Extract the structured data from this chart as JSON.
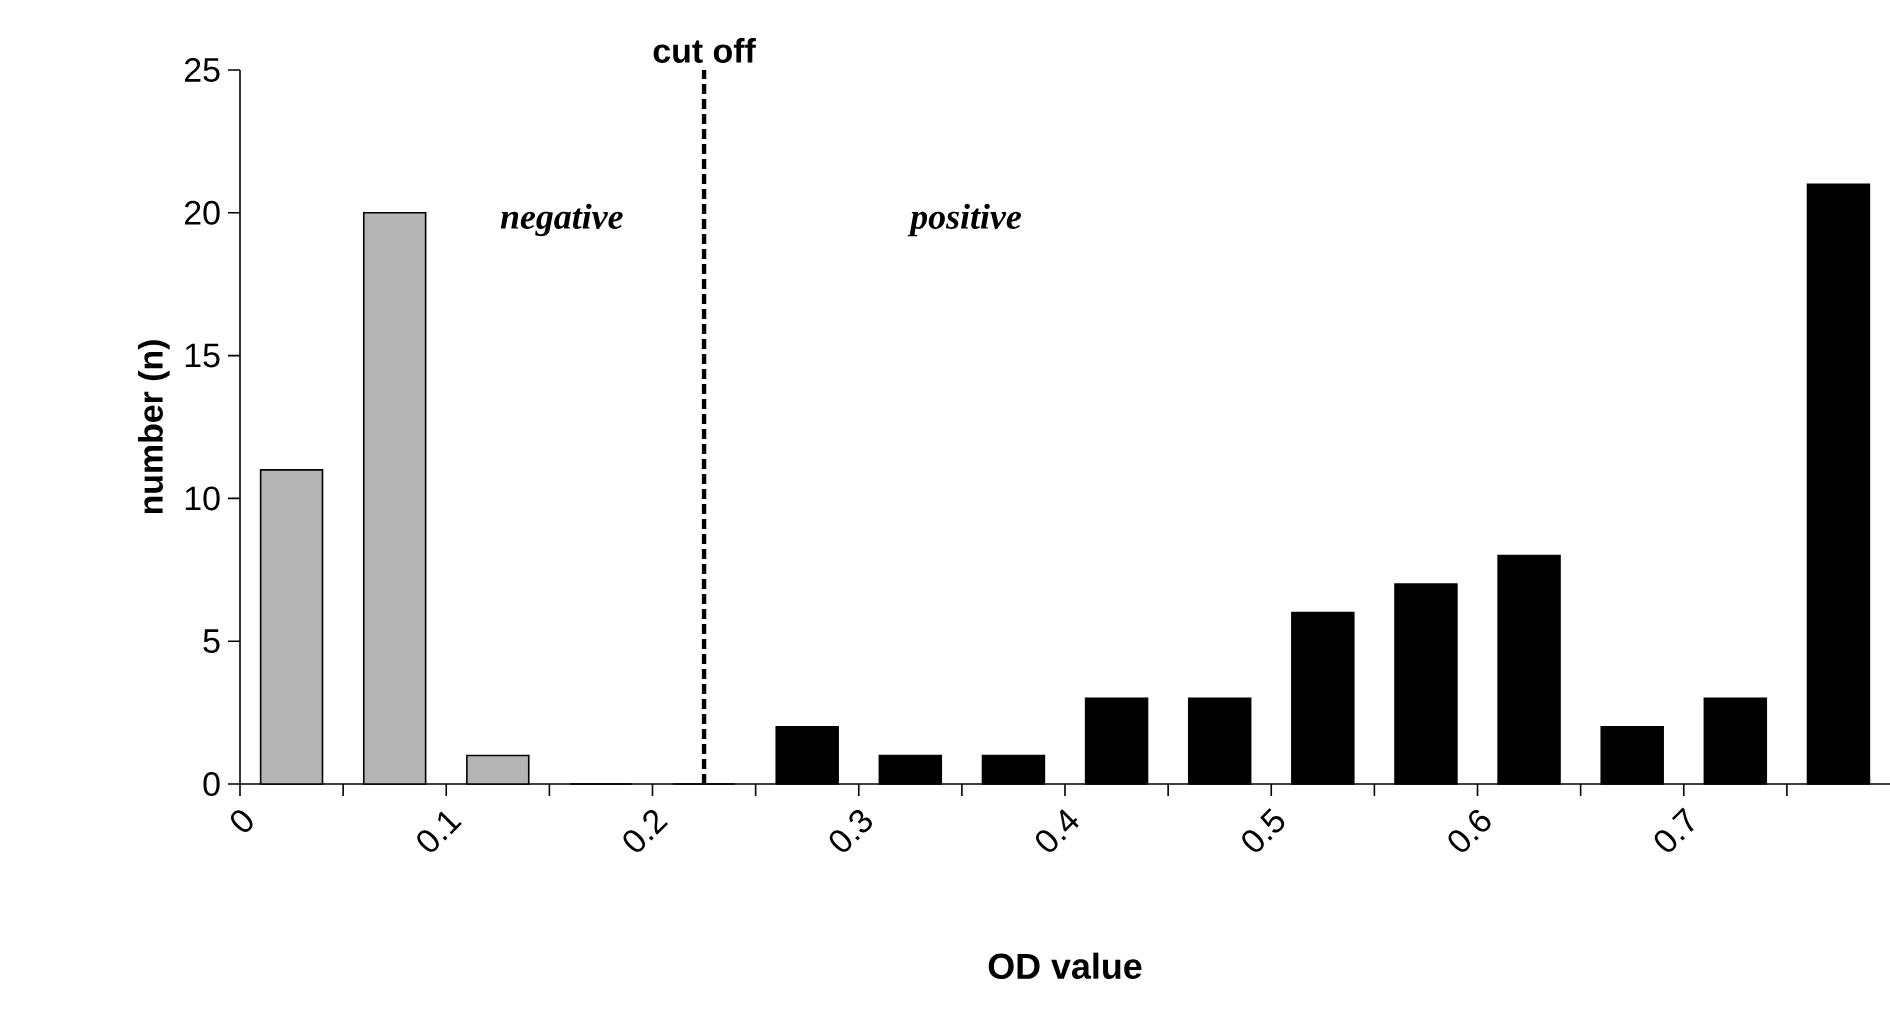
{
  "chart_data": {
    "type": "histogram",
    "xlabel": "OD   value",
    "ylabel": "number (n)",
    "bins": [
      0,
      0.05,
      0.1,
      0.15,
      0.2,
      0.25,
      0.3,
      0.35,
      0.4,
      0.45,
      0.5,
      0.55,
      0.6,
      0.65,
      0.7,
      0.75,
      0.8
    ],
    "values": [
      11,
      20,
      1,
      0,
      0,
      2,
      1,
      1,
      3,
      3,
      6,
      7,
      8,
      2,
      3,
      21
    ],
    "colors": [
      "#b4b4b4",
      "#b4b4b4",
      "#b4b4b4",
      "#b4b4b4",
      "#b4b4b4",
      "#000000",
      "#000000",
      "#000000",
      "#000000",
      "#000000",
      "#000000",
      "#000000",
      "#000000",
      "#000000",
      "#000000",
      "#000000"
    ],
    "xlim": [
      0,
      0.8
    ],
    "ylim": [
      0,
      25
    ],
    "xticks": [
      0,
      {
        "value": 0.05,
        "label": null
      },
      0.1,
      {
        "value": 0.15,
        "label": null
      },
      0.2,
      {
        "value": 0.25,
        "label": null
      },
      0.3,
      {
        "value": 0.35,
        "label": null
      },
      0.4,
      {
        "value": 0.45,
        "label": null
      },
      0.5,
      {
        "value": 0.55,
        "label": null
      },
      0.6,
      {
        "value": 0.65,
        "label": null
      },
      0.7,
      {
        "value": 0.75,
        "label": null
      }
    ],
    "yticks": [
      0,
      5,
      10,
      15,
      20,
      25
    ],
    "ref_lines": [
      {
        "axis": "x",
        "value": 0.225,
        "label": "cut off",
        "line_style": "dashed",
        "color": "#000000"
      }
    ],
    "annotations": [
      "negative",
      "positive"
    ],
    "grid": false
  }
}
